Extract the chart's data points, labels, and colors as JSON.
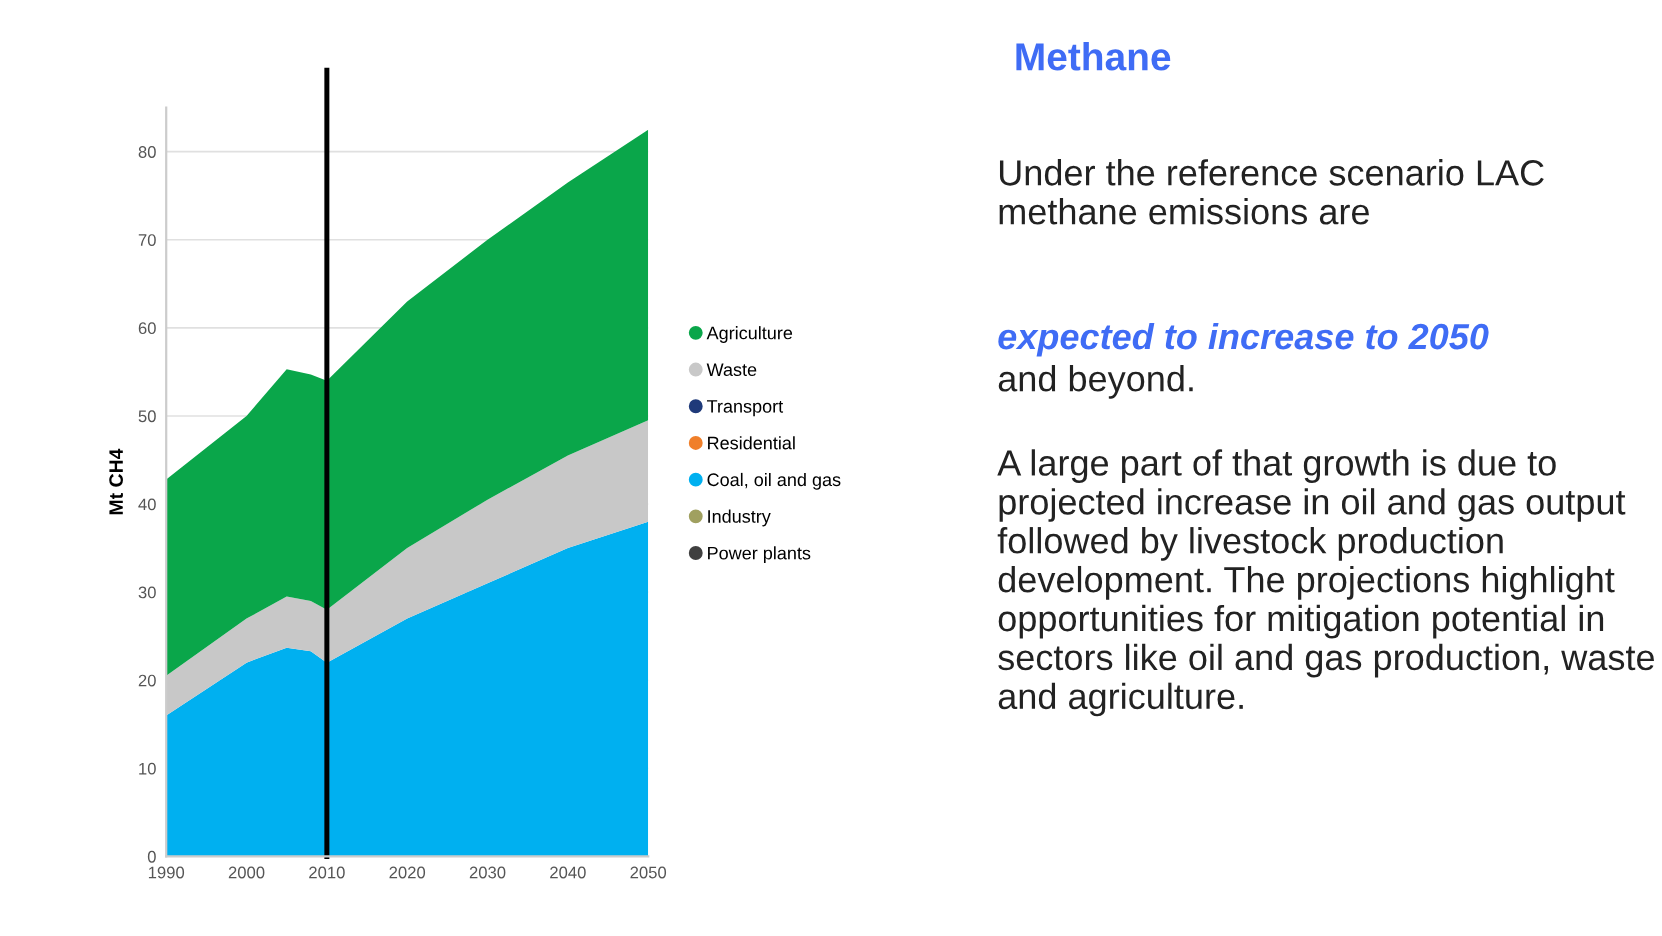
{
  "chart_data": {
    "type": "area",
    "stacked": true,
    "title": "Methane",
    "ylabel": "Mt CH4",
    "x": [
      "1990",
      "2000",
      "2005",
      "2008",
      "2010",
      "2020",
      "2030",
      "2040",
      "2050"
    ],
    "series": [
      {
        "name": "Power plants",
        "color": "#404040",
        "values": [
          null,
          null,
          null,
          null,
          null,
          null,
          null,
          null,
          null
        ]
      },
      {
        "name": "Industry",
        "color": "#a0a060",
        "values": [
          null,
          null,
          null,
          null,
          null,
          null,
          null,
          null,
          null
        ]
      },
      {
        "name": "Coal, oil and gas",
        "color": "#00b0f0",
        "values": [
          16,
          22,
          23.7,
          23.3,
          22,
          27,
          31,
          35,
          38
        ]
      },
      {
        "name": "Residential",
        "color": "#f07f2a",
        "values": [
          null,
          null,
          null,
          null,
          null,
          null,
          null,
          null,
          null
        ]
      },
      {
        "name": "Transport",
        "color": "#1f3a7a",
        "values": [
          null,
          null,
          null,
          null,
          null,
          null,
          null,
          null,
          null
        ]
      },
      {
        "name": "Waste",
        "color": "#c8c8c8",
        "values": [
          4.5,
          5,
          5.8,
          5.7,
          6,
          8,
          9.5,
          10.5,
          11.5
        ]
      },
      {
        "name": "Agriculture",
        "color": "#0aa64a",
        "values": [
          22.3,
          23,
          25.8,
          25.7,
          26,
          28,
          29.5,
          31,
          33
        ]
      }
    ],
    "xlim": [
      "1990",
      "2050"
    ],
    "xticks": [
      {
        "value": "1990",
        "label": "1990"
      },
      {
        "value": "2000",
        "label": "2000"
      },
      {
        "value": "2010",
        "label": "2010"
      },
      {
        "value": "2020",
        "label": "2020"
      },
      {
        "value": "2030",
        "label": "2030"
      },
      {
        "value": "2040",
        "label": "2040"
      },
      {
        "value": "2050",
        "label": "2050"
      }
    ],
    "ylim": [
      0,
      85
    ],
    "yticks": [
      0,
      10,
      20,
      30,
      40,
      50,
      60,
      70,
      80
    ],
    "ref_lines": [
      {
        "axis": "x",
        "value": "2010",
        "color": "#000000"
      }
    ],
    "grid": "y",
    "legend": "right",
    "annotations": [
      "Under the reference scenario LAC methane emissions are",
      "expected to increase to 2050",
      "and beyond.",
      "A large part of that growth is due to projected increase in oil and gas output followed by livestock production development. The projections highlight opportunities for mitigation potential in sectors like oil and gas production, waste and agriculture."
    ]
  }
}
